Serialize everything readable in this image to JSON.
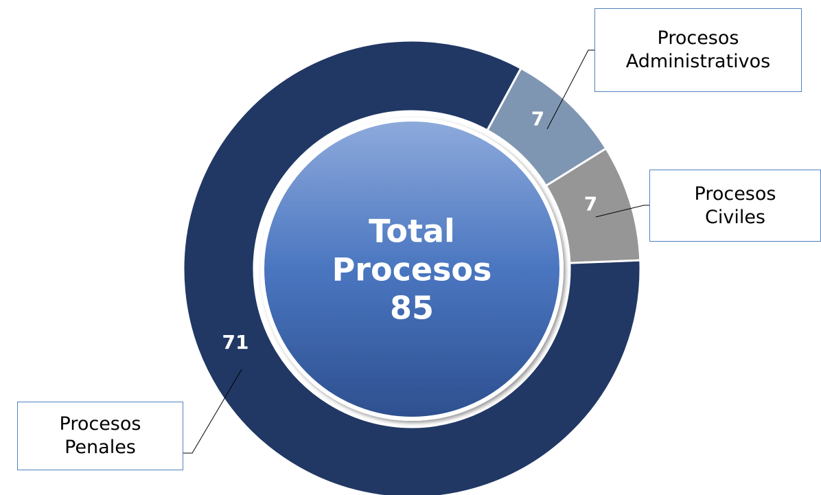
{
  "chart_data": {
    "type": "donut",
    "categories": [
      "Procesos Administrativos",
      "Procesos Civiles",
      "Procesos Penales"
    ],
    "values": [
      7,
      7,
      71
    ],
    "colors": [
      "#7f96b2",
      "#969696",
      "#213864"
    ],
    "center_lines": [
      "Total",
      "Procesos"
    ],
    "total": 85
  }
}
